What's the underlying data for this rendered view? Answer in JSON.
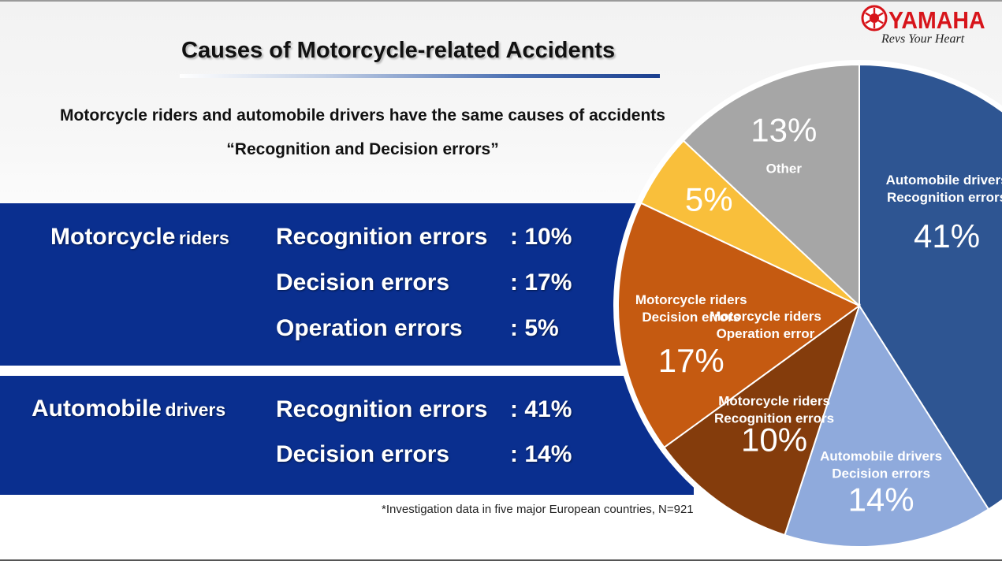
{
  "header": {
    "title": "Causes of Motorcycle-related Accidents",
    "subtitle_line1": "Motorcycle riders and automobile drivers have the same causes of accidents",
    "subtitle_line2": "“Recognition and Decision errors”"
  },
  "logo": {
    "brand": "YAMAHA",
    "tagline": "Revs Your Heart",
    "icon": "tuning-fork-emblem-icon",
    "color": "#d7141a"
  },
  "motorcycle": {
    "label_big": "Motorcycle",
    "label_small": "riders",
    "rows": [
      {
        "label": "Recognition errors",
        "value": ": 10%"
      },
      {
        "label": "Decision errors",
        "value": ": 17%"
      },
      {
        "label": "Operation errors",
        "value": ": 5%"
      }
    ]
  },
  "automobile": {
    "label_big": "Automobile",
    "label_small": "drivers",
    "rows": [
      {
        "label": "Recognition errors",
        "value": ": 41%"
      },
      {
        "label": "Decision errors",
        "value": ": 14%"
      }
    ]
  },
  "footnote": "*Investigation data in five major European countries, N=921",
  "colors": {
    "band": "#0a2f8f",
    "accent": "#1b3f8f"
  },
  "chart_data": {
    "type": "pie",
    "start_angle_deg": 0,
    "direction": "clockwise",
    "slices": [
      {
        "name": "Automobile drivers Recognition errors",
        "line1": "Automobile drivers",
        "line2": "Recognition errors",
        "value": 41,
        "pct_label": "41%",
        "color": "#2e5592"
      },
      {
        "name": "Automobile drivers Decision errors",
        "line1": "Automobile drivers",
        "line2": "Decision errors",
        "value": 14,
        "pct_label": "14%",
        "color": "#8faadc"
      },
      {
        "name": "Motorcycle riders Recognition errors",
        "line1": "Motorcycle riders",
        "line2": "Recognition errors",
        "value": 10,
        "pct_label": "10%",
        "color": "#843c0c"
      },
      {
        "name": "Motorcycle riders Decision errors",
        "line1": "Motorcycle riders",
        "line2": "Decision errors",
        "value": 17,
        "pct_label": "17%",
        "color": "#c55a11"
      },
      {
        "name": "Motorcycle riders Operation error",
        "line1": "Motorcycle riders",
        "line2": "Operation error",
        "value": 5,
        "pct_label": "5%",
        "color": "#f9bf3b"
      },
      {
        "name": "Other",
        "line1": "Other",
        "line2": "",
        "value": 13,
        "pct_label": "13%",
        "color": "#a6a6a6"
      }
    ],
    "title": "",
    "total": 100
  }
}
